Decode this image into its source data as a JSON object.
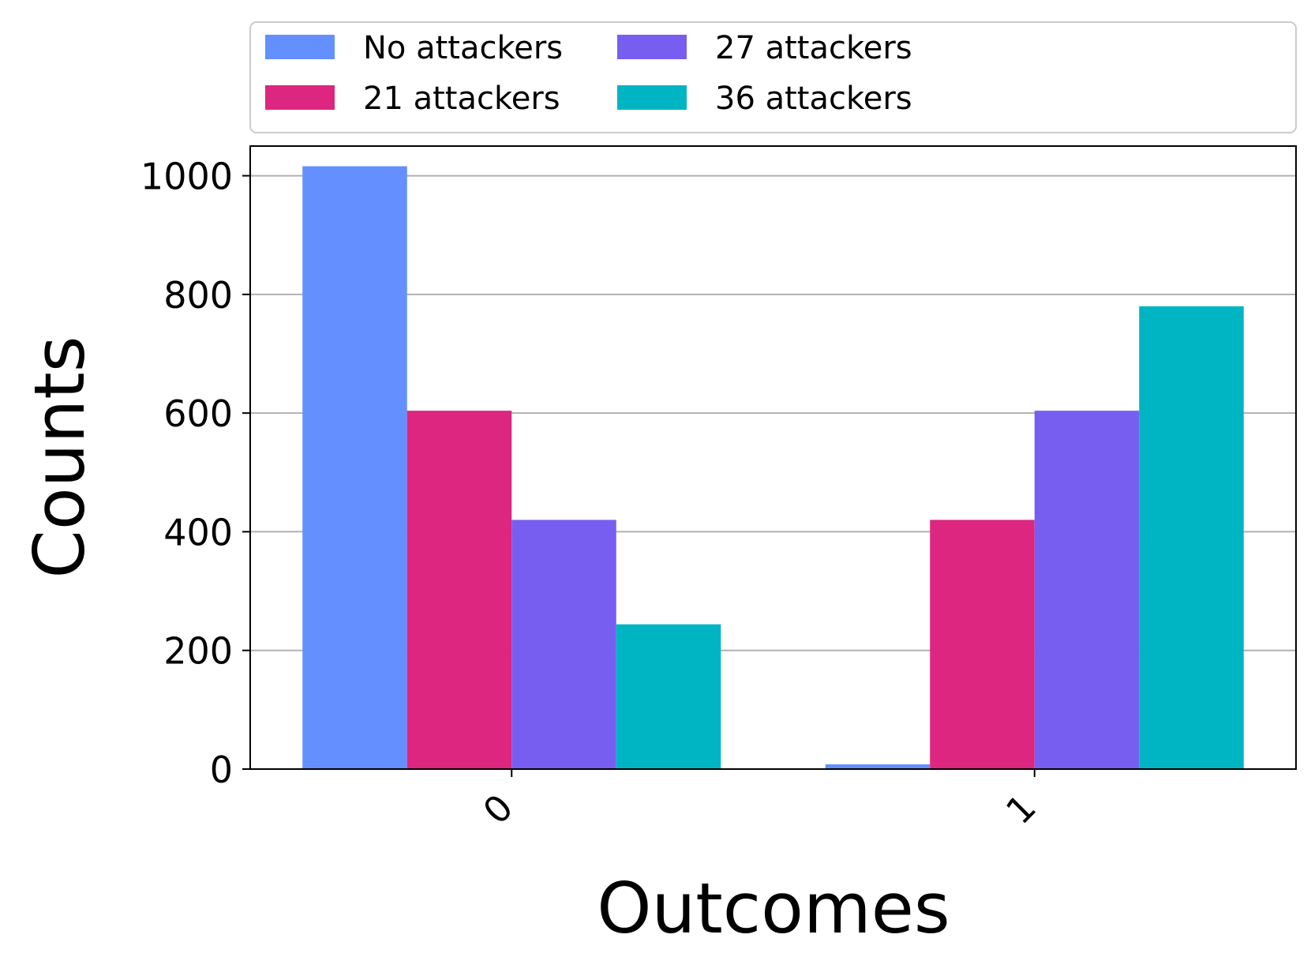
{
  "chart_data": {
    "type": "bar",
    "xlabel": "Outcomes",
    "ylabel": "Counts",
    "categories": [
      "0",
      "1"
    ],
    "series": [
      {
        "name": "No attackers",
        "color": "#648FFF",
        "values": [
          1016,
          8
        ]
      },
      {
        "name": "21 attackers",
        "color": "#DC267F",
        "values": [
          604,
          420
        ]
      },
      {
        "name": "27 attackers",
        "color": "#785EF0",
        "values": [
          420,
          604
        ]
      },
      {
        "name": "36 attackers",
        "color": "#00B5C3",
        "values": [
          244,
          780
        ]
      }
    ],
    "ylim": [
      0,
      1050
    ],
    "yticks": [
      "0",
      "200",
      "400",
      "600",
      "800",
      "1000"
    ],
    "grid": "horizontal",
    "legend_position": "top"
  }
}
